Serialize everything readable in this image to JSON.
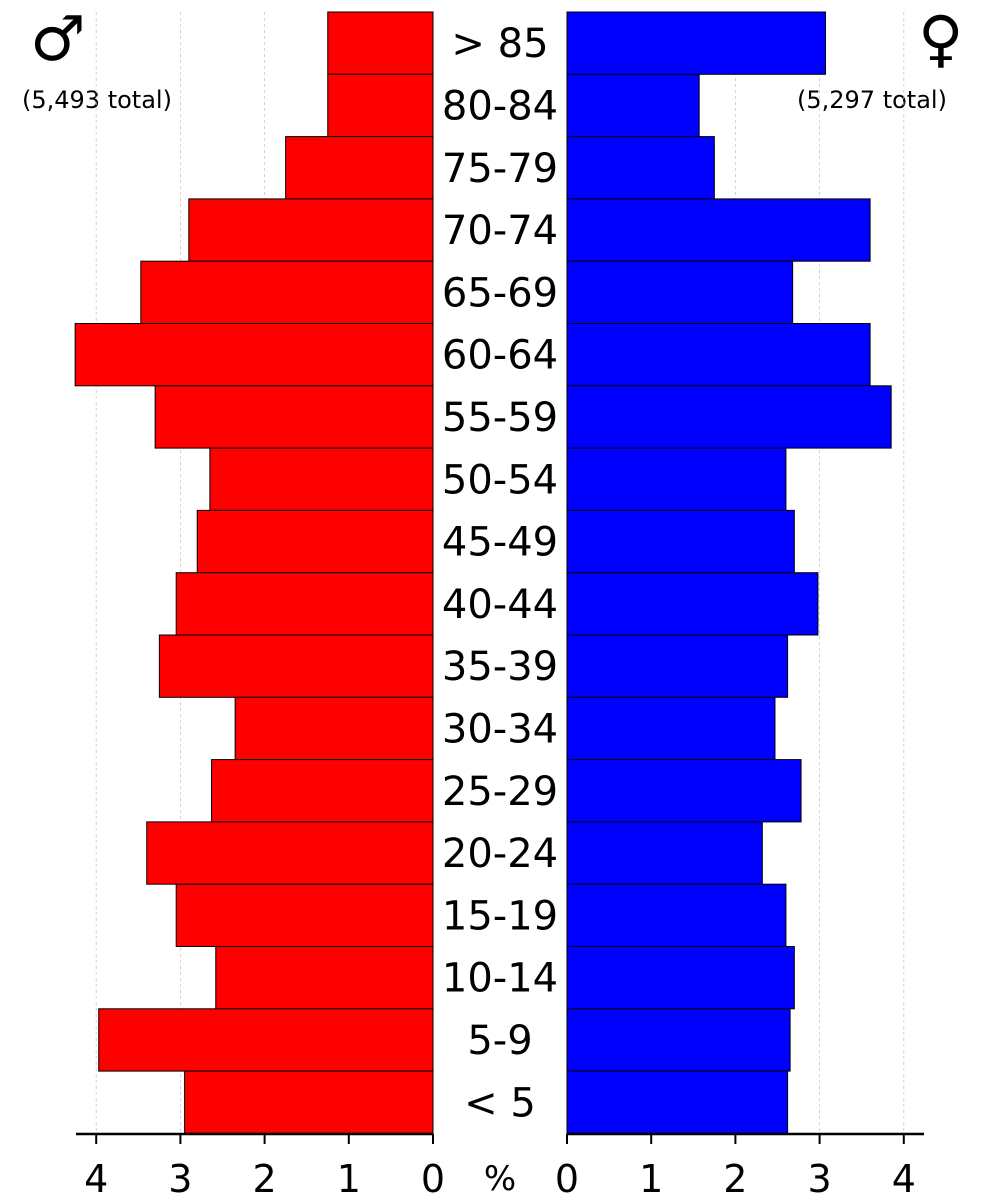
{
  "header": {
    "male_symbol": "♂",
    "female_symbol": "♀",
    "male_total": "(5,493 total)",
    "female_total": "(5,297 total)"
  },
  "chart_data": {
    "type": "bar",
    "orientation": "horizontal",
    "layout": "population-pyramid",
    "categories": [
      "> 85",
      "80-84",
      "75-79",
      "70-74",
      "65-69",
      "60-64",
      "55-59",
      "50-54",
      "45-49",
      "40-44",
      "35-39",
      "30-34",
      "25-29",
      "20-24",
      "15-19",
      "10-14",
      "5-9",
      "< 5"
    ],
    "series": [
      {
        "name": "♂",
        "color": "#ff0000",
        "values": [
          1.25,
          1.25,
          1.75,
          2.9,
          3.47,
          4.25,
          3.3,
          2.65,
          2.8,
          3.05,
          3.25,
          2.35,
          2.63,
          3.4,
          3.05,
          2.58,
          3.97,
          2.95
        ]
      },
      {
        "name": "♀",
        "color": "#0000ff",
        "values": [
          3.07,
          1.57,
          1.75,
          3.6,
          2.68,
          3.6,
          3.85,
          2.6,
          2.7,
          2.98,
          2.62,
          2.47,
          2.78,
          2.32,
          2.6,
          2.7,
          2.65,
          2.62
        ]
      }
    ],
    "male_ticks": [
      "4",
      "3",
      "2",
      "1",
      "0"
    ],
    "female_ticks": [
      "0",
      "1",
      "2",
      "3",
      "4"
    ],
    "center_axis_label": "%",
    "xlim": [
      0,
      4.25
    ],
    "grid": "vertical dashed"
  }
}
